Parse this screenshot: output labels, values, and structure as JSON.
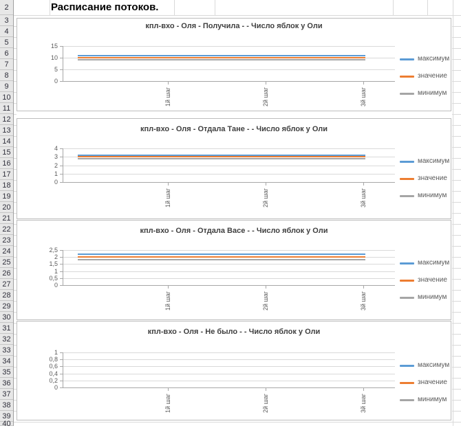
{
  "sheet": {
    "title": "Расписание потоков.",
    "row_numbers": [
      "2",
      "3",
      "4",
      "5",
      "6",
      "7",
      "8",
      "9",
      "10",
      "11",
      "12",
      "13",
      "14",
      "15",
      "16",
      "17",
      "18",
      "19",
      "20",
      "21",
      "22",
      "23",
      "24",
      "25",
      "26",
      "27",
      "28",
      "29",
      "30",
      "31",
      "32",
      "33",
      "34",
      "35",
      "36",
      "37",
      "38",
      "39",
      "40"
    ],
    "colors": {
      "header_bg": "#e7e7e7",
      "header_border": "#9f9f9f",
      "sheet_gridline": "#d9d9d9",
      "chart_border": "#bdbdbd",
      "chart_gridline": "#d9d9d9",
      "axis": "#a6a6a6",
      "title_text": "#3f3f3f",
      "tick_text": "#595959"
    }
  },
  "legend": {
    "position": "right",
    "items": [
      {
        "label": "максимум",
        "color": "#5B9BD5"
      },
      {
        "label": "значение",
        "color": "#ED7D31"
      },
      {
        "label": "минимум",
        "color": "#A5A5A5"
      }
    ]
  },
  "chart_data": [
    {
      "type": "line",
      "title": "кпл-вхо - Оля - Получила -  - Число яблок у Оли",
      "categories": [
        "1й шаг",
        "2й шаг",
        "3й шаг"
      ],
      "series": [
        {
          "name": "максимум",
          "color": "#5B9BD5",
          "values": [
            11,
            11,
            11
          ]
        },
        {
          "name": "значение",
          "color": "#ED7D31",
          "values": [
            10,
            10,
            10
          ]
        },
        {
          "name": "минимум",
          "color": "#A5A5A5",
          "values": [
            9,
            9,
            9
          ]
        }
      ],
      "ylim": [
        0,
        15
      ],
      "yticks": [
        {
          "label": "15",
          "value": 15
        },
        {
          "label": "10",
          "value": 10
        },
        {
          "label": "5",
          "value": 5
        },
        {
          "label": "0",
          "value": 0
        }
      ],
      "grid": true,
      "legend_position": "right"
    },
    {
      "type": "line",
      "title": "кпл-вхо - Оля - Отдала Тане -  - Число яблок у Оли",
      "categories": [
        "1й шаг",
        "2й шаг",
        "3й шаг"
      ],
      "series": [
        {
          "name": "максимум",
          "color": "#5B9BD5",
          "values": [
            3.2,
            3.2,
            3.2
          ]
        },
        {
          "name": "значение",
          "color": "#ED7D31",
          "values": [
            3,
            3,
            3
          ]
        },
        {
          "name": "минимум",
          "color": "#A5A5A5",
          "values": [
            2.8,
            2.8,
            2.8
          ]
        }
      ],
      "ylim": [
        0,
        4
      ],
      "yticks": [
        {
          "label": "4",
          "value": 4
        },
        {
          "label": "3",
          "value": 3
        },
        {
          "label": "2",
          "value": 2
        },
        {
          "label": "1",
          "value": 1
        },
        {
          "label": "0",
          "value": 0
        }
      ],
      "grid": true,
      "legend_position": "right"
    },
    {
      "type": "line",
      "title": "кпл-вхо - Оля - Отдала Васе -  - Число яблок у Оли",
      "categories": [
        "1й шаг",
        "2й шаг",
        "3й шаг"
      ],
      "series": [
        {
          "name": "максимум",
          "color": "#5B9BD5",
          "values": [
            2.2,
            2.2,
            2.2
          ]
        },
        {
          "name": "значение",
          "color": "#ED7D31",
          "values": [
            2,
            2,
            2
          ]
        },
        {
          "name": "минимум",
          "color": "#A5A5A5",
          "values": [
            1.8,
            1.8,
            1.8
          ]
        }
      ],
      "ylim": [
        0,
        2.5
      ],
      "yticks": [
        {
          "label": "2,5",
          "value": 2.5
        },
        {
          "label": "2",
          "value": 2
        },
        {
          "label": "1,5",
          "value": 1.5
        },
        {
          "label": "1",
          "value": 1
        },
        {
          "label": "0,5",
          "value": 0.5
        },
        {
          "label": "0",
          "value": 0
        }
      ],
      "grid": true,
      "legend_position": "right"
    },
    {
      "type": "line",
      "title": "кпл-вхо - Оля - Не было -  - Число яблок у Оли",
      "categories": [
        "1й шаг",
        "2й шаг",
        "3й шаг"
      ],
      "series": [
        {
          "name": "максимум",
          "color": "#5B9BD5",
          "values": []
        },
        {
          "name": "значение",
          "color": "#ED7D31",
          "values": []
        },
        {
          "name": "минимум",
          "color": "#A5A5A5",
          "values": []
        }
      ],
      "ylim": [
        0,
        1
      ],
      "yticks": [
        {
          "label": "1",
          "value": 1
        },
        {
          "label": "0,8",
          "value": 0.8
        },
        {
          "label": "0,6",
          "value": 0.6
        },
        {
          "label": "0,4",
          "value": 0.4
        },
        {
          "label": "0,2",
          "value": 0.2
        },
        {
          "label": "0",
          "value": 0
        }
      ],
      "grid": true,
      "legend_position": "right"
    }
  ]
}
